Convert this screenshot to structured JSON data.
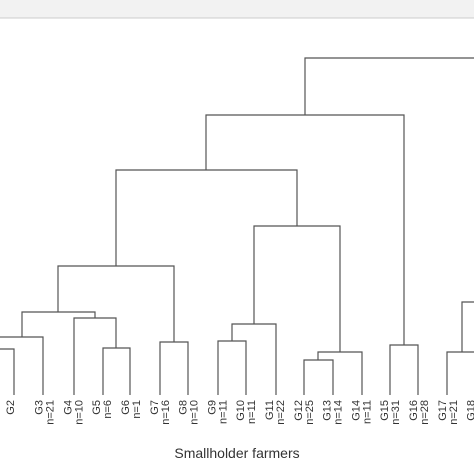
{
  "chart_data": {
    "type": "dendrogram",
    "xlabel": "Smallholder farmers",
    "leaves": [
      "G2",
      "G3",
      "G4",
      "G5",
      "G6",
      "G7",
      "G8",
      "G9",
      "G10",
      "G11",
      "G12",
      "G13",
      "G14",
      "G15",
      "G16",
      "G17",
      "G18"
    ],
    "counts": [
      null,
      "n=21",
      "n=10",
      "n=6",
      "n=1",
      "n=16",
      "n=10",
      "n=11",
      "n=11",
      "n=22",
      "n=25",
      "n=14",
      "n=11",
      "n=31",
      "n=28",
      "n=21",
      null
    ]
  }
}
